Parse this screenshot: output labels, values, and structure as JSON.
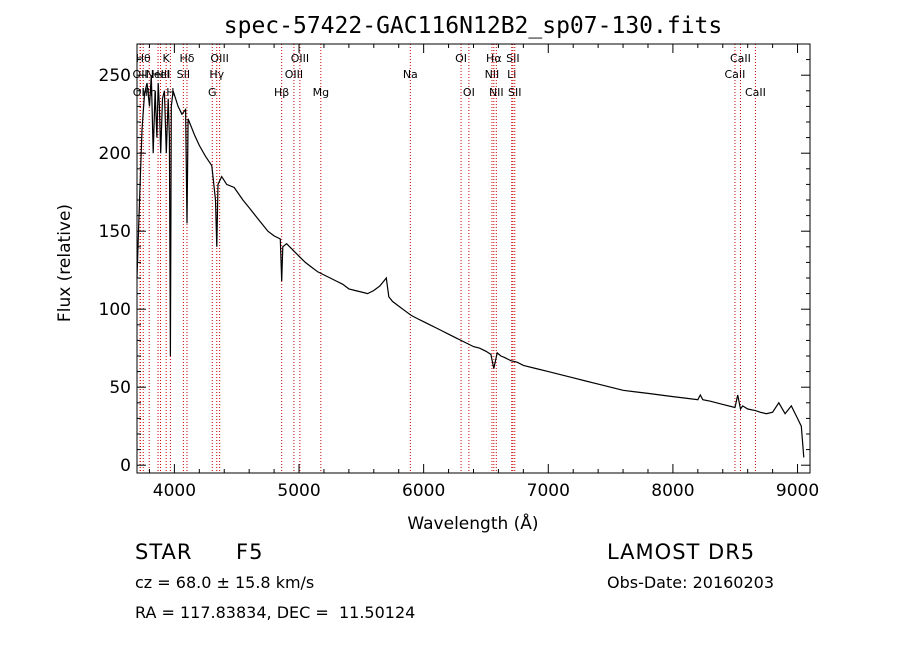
{
  "chart_data": {
    "type": "line",
    "title": "spec-57422-GAC116N12B2_sp07-130.fits",
    "xlabel": "Wavelength (Å)",
    "ylabel": "Flux (relative)",
    "xlim": [
      3700,
      9100
    ],
    "ylim": [
      -5,
      270
    ],
    "xticks": [
      4000,
      5000,
      6000,
      7000,
      8000,
      9000
    ],
    "yticks": [
      0,
      50,
      100,
      150,
      200,
      250
    ],
    "grid": false,
    "series": [
      {
        "x": [
          3700,
          3712,
          3725,
          3740,
          3760,
          3780,
          3800,
          3815,
          3830,
          3845,
          3860,
          3870,
          3880,
          3890,
          3905,
          3920,
          3935,
          3950,
          3960,
          3968,
          3975,
          3990,
          4010,
          4030,
          4060,
          4090,
          4101,
          4110,
          4130,
          4160,
          4200,
          4250,
          4300,
          4330,
          4340,
          4350,
          4380,
          4420,
          4480,
          4550,
          4600,
          4650,
          4700,
          4750,
          4800,
          4850,
          4861,
          4870,
          4900,
          4950,
          5000,
          5050,
          5100,
          5150,
          5200,
          5250,
          5300,
          5350,
          5400,
          5450,
          5500,
          5550,
          5600,
          5650,
          5680,
          5700,
          5720,
          5750,
          5800,
          5850,
          5900,
          5950,
          6000,
          6050,
          6100,
          6150,
          6200,
          6250,
          6300,
          6350,
          6400,
          6450,
          6500,
          6540,
          6563,
          6590,
          6620,
          6650,
          6700,
          6750,
          6800,
          6900,
          7000,
          7100,
          7200,
          7300,
          7400,
          7500,
          7600,
          7700,
          7800,
          7900,
          8000,
          8100,
          8200,
          8220,
          8240,
          8300,
          8400,
          8498,
          8520,
          8542,
          8560,
          8600,
          8662,
          8700,
          8750,
          8800,
          8850,
          8900,
          8950,
          9000,
          9030,
          9050
        ],
        "values": [
          120,
          150,
          180,
          215,
          238,
          245,
          230,
          250,
          200,
          240,
          210,
          245,
          230,
          200,
          235,
          240,
          200,
          235,
          210,
          70,
          230,
          240,
          235,
          230,
          225,
          228,
          155,
          222,
          218,
          212,
          205,
          198,
          192,
          170,
          140,
          180,
          185,
          180,
          178,
          170,
          165,
          160,
          155,
          150,
          147,
          145,
          118,
          140,
          142,
          138,
          134,
          130,
          127,
          124,
          122,
          120,
          118,
          116,
          113,
          112,
          111,
          110,
          112,
          115,
          118,
          120,
          108,
          105,
          102,
          99,
          96,
          94,
          92,
          90,
          88,
          86,
          84,
          82,
          80,
          78,
          76,
          75,
          73,
          71,
          62,
          72,
          70,
          69,
          67,
          66,
          64,
          62,
          60,
          58,
          56,
          54,
          52,
          50,
          48,
          47,
          46,
          45,
          44,
          43,
          42,
          45,
          42,
          41,
          39,
          37,
          45,
          36,
          38,
          36,
          35,
          34,
          33,
          34,
          40,
          33,
          38,
          30,
          25,
          5
        ]
      }
    ],
    "line_labels": [
      {
        "x": 3750,
        "label": "Hθ",
        "row": 0
      },
      {
        "x": 3725,
        "label": "OII",
        "row": 1
      },
      {
        "x": 3727,
        "label": "OII",
        "row": 2
      },
      {
        "x": 3798,
        "label": "Hη",
        "row": 2
      },
      {
        "x": 3869,
        "label": "NeIII",
        "row": 1
      },
      {
        "x": 3889,
        "label": "HeI",
        "row": 1
      },
      {
        "x": 3934,
        "label": "K",
        "row": 0
      },
      {
        "x": 3968,
        "label": "H",
        "row": 2
      },
      {
        "x": 4101,
        "label": "Hδ",
        "row": 0
      },
      {
        "x": 4072,
        "label": "SII",
        "row": 1
      },
      {
        "x": 4304,
        "label": "G",
        "row": 2
      },
      {
        "x": 4340,
        "label": "Hγ",
        "row": 1
      },
      {
        "x": 4363,
        "label": "OIII",
        "row": 0
      },
      {
        "x": 4861,
        "label": "Hβ",
        "row": 2
      },
      {
        "x": 4959,
        "label": "OIII",
        "row": 1
      },
      {
        "x": 5007,
        "label": "OIII",
        "row": 0
      },
      {
        "x": 5175,
        "label": "Mg",
        "row": 2
      },
      {
        "x": 5893,
        "label": "Na",
        "row": 1
      },
      {
        "x": 6300,
        "label": "OI",
        "row": 0
      },
      {
        "x": 6363,
        "label": "OI",
        "row": 2
      },
      {
        "x": 6548,
        "label": "NII",
        "row": 1
      },
      {
        "x": 6563,
        "label": "Hα",
        "row": 0
      },
      {
        "x": 6583,
        "label": "NII",
        "row": 2
      },
      {
        "x": 6707,
        "label": "Li",
        "row": 1
      },
      {
        "x": 6716,
        "label": "SII",
        "row": 0
      },
      {
        "x": 6731,
        "label": "SII",
        "row": 2
      },
      {
        "x": 8498,
        "label": "CaII",
        "row": 1
      },
      {
        "x": 8542,
        "label": "CaII",
        "row": 0
      },
      {
        "x": 8662,
        "label": "CaII",
        "row": 2
      }
    ],
    "line_color": "#cc0000"
  },
  "info": {
    "object_class": "STAR",
    "subclass": "F5",
    "survey": "LAMOST DR5",
    "redshift": "cz = 68.0 ± 15.8 km/s",
    "obs_date": "Obs-Date: 20160203",
    "coords": "RA = 117.83834, DEC =  11.50124"
  }
}
